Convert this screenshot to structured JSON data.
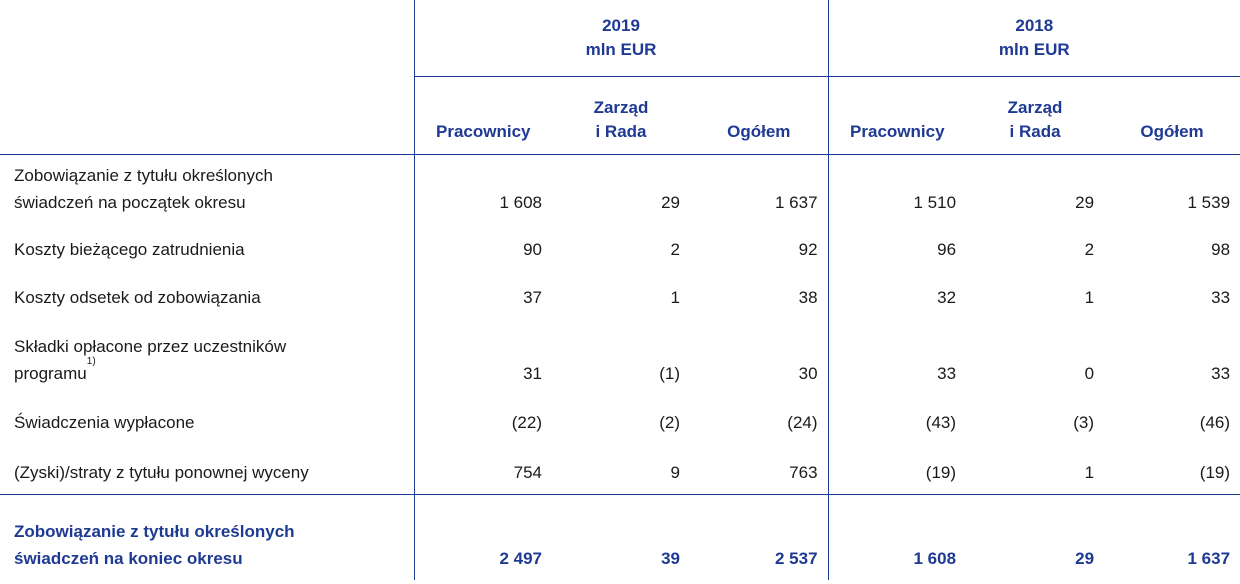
{
  "header": {
    "year1": "2019",
    "year1_unit": "mln EUR",
    "year2": "2018",
    "year2_unit": "mln EUR",
    "col_pracownicy": "Pracownicy",
    "col_zarzad_1": "Zarząd",
    "col_zarzad_2": "i Rada",
    "col_ogolem": "Ogółem"
  },
  "rows": [
    {
      "label1": "Zobowiązanie z tytułu określonych",
      "label2": "świadczeń na początek okresu",
      "v": [
        "1 608",
        "29",
        "1 637",
        "1 510",
        "29",
        "1 539"
      ]
    },
    {
      "label1": "Koszty bieżącego zatrudnienia",
      "v": [
        "90",
        "2",
        "92",
        "96",
        "2",
        "98"
      ]
    },
    {
      "label1": "Koszty odsetek od zobowiązania",
      "v": [
        "37",
        "1",
        "38",
        "32",
        "1",
        "33"
      ]
    },
    {
      "label1": "Składki opłacone przez uczestników",
      "label2": "programu",
      "footnote": "1)",
      "v": [
        "31",
        "(1)",
        "30",
        "33",
        "0",
        "33"
      ]
    },
    {
      "label1": "Świadczenia wypłacone",
      "v": [
        "(22)",
        "(2)",
        "(24)",
        "(43)",
        "(3)",
        "(46)"
      ]
    },
    {
      "label1": "(Zyski)/straty z tytułu ponownej wyceny",
      "v": [
        "754",
        "9",
        "763",
        "(19)",
        "1",
        "(19)"
      ]
    },
    {
      "label1": "Zobowiązanie z tytułu określonych",
      "label2": "świadczeń na koniec okresu",
      "v": [
        "2 497",
        "39",
        "2 537",
        "1 608",
        "29",
        "1 637"
      ]
    }
  ]
}
